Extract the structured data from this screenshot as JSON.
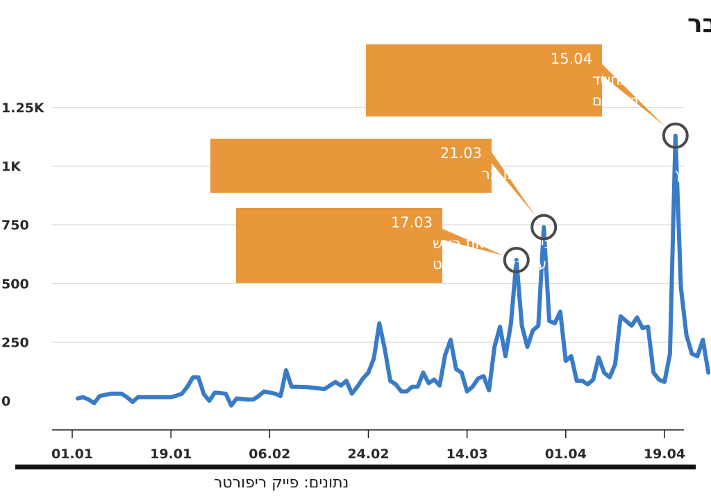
{
  "chart_data": {
    "type": "line",
    "title": "שיח השנאה ברשת נגד ראש השב\"כ רונן בר",
    "source": "נתונים: פייק ריפורטר",
    "colors": {
      "line": "#3a7bc8",
      "callout": "#e8983a",
      "ring": "#4a4a4a"
    },
    "x_ticks": [
      {
        "label": "01.01",
        "day": 1
      },
      {
        "label": "19.01",
        "day": 19
      },
      {
        "label": "06.02",
        "day": 37
      },
      {
        "label": "24.02",
        "day": 55
      },
      {
        "label": "14.03",
        "day": 73
      },
      {
        "label": "01.04",
        "day": 91
      },
      {
        "label": "19.04",
        "day": 109
      }
    ],
    "y_ticks": [
      {
        "label": "0",
        "value": 0
      },
      {
        "label": "250",
        "value": 250
      },
      {
        "label": "500",
        "value": 500
      },
      {
        "label": "750",
        "value": 750
      },
      {
        "label": "1K",
        "value": 1000
      },
      {
        "label": "1.25K",
        "value": 1250
      }
    ],
    "xlim": [
      1,
      113
    ],
    "ylim": [
      0,
      1250
    ],
    "series": [
      {
        "name": "mentions",
        "points": [
          [
            2,
            10
          ],
          [
            3,
            15
          ],
          [
            4,
            5
          ],
          [
            5,
            -10
          ],
          [
            6,
            20
          ],
          [
            8,
            30
          ],
          [
            10,
            30
          ],
          [
            11,
            15
          ],
          [
            12,
            -5
          ],
          [
            13,
            15
          ],
          [
            15,
            15
          ],
          [
            17,
            15
          ],
          [
            19,
            15
          ],
          [
            20,
            22
          ],
          [
            21,
            30
          ],
          [
            22,
            60
          ],
          [
            23,
            100
          ],
          [
            24,
            100
          ],
          [
            25,
            28
          ],
          [
            26,
            0
          ],
          [
            27,
            35
          ],
          [
            29,
            30
          ],
          [
            30,
            -20
          ],
          [
            31,
            10
          ],
          [
            33,
            5
          ],
          [
            34,
            5
          ],
          [
            35,
            20
          ],
          [
            36,
            40
          ],
          [
            38,
            30
          ],
          [
            39,
            20
          ],
          [
            40,
            130
          ],
          [
            41,
            60
          ],
          [
            42,
            60
          ],
          [
            44,
            58
          ],
          [
            47,
            50
          ],
          [
            49,
            80
          ],
          [
            50,
            65
          ],
          [
            51,
            85
          ],
          [
            52,
            30
          ],
          [
            53,
            60
          ],
          [
            54,
            95
          ],
          [
            55,
            120
          ],
          [
            56,
            180
          ],
          [
            57,
            330
          ],
          [
            58,
            220
          ],
          [
            59,
            85
          ],
          [
            60,
            70
          ],
          [
            61,
            40
          ],
          [
            62,
            40
          ],
          [
            63,
            60
          ],
          [
            64,
            60
          ],
          [
            65,
            120
          ],
          [
            66,
            75
          ],
          [
            67,
            90
          ],
          [
            68,
            65
          ],
          [
            69,
            195
          ],
          [
            70,
            260
          ],
          [
            71,
            135
          ],
          [
            72,
            120
          ],
          [
            73,
            40
          ],
          [
            74,
            60
          ],
          [
            75,
            95
          ],
          [
            76,
            105
          ],
          [
            77,
            45
          ],
          [
            78,
            230
          ],
          [
            79,
            315
          ],
          [
            80,
            190
          ],
          [
            81,
            330
          ],
          [
            82,
            600
          ],
          [
            83,
            320
          ],
          [
            84,
            230
          ],
          [
            85,
            300
          ],
          [
            86,
            320
          ],
          [
            87,
            740
          ],
          [
            88,
            340
          ],
          [
            89,
            330
          ],
          [
            90,
            380
          ],
          [
            91,
            170
          ],
          [
            92,
            190
          ],
          [
            93,
            85
          ],
          [
            94,
            85
          ],
          [
            95,
            70
          ],
          [
            96,
            90
          ],
          [
            97,
            185
          ],
          [
            98,
            120
          ],
          [
            99,
            100
          ],
          [
            100,
            155
          ],
          [
            101,
            360
          ],
          [
            102,
            340
          ],
          [
            103,
            320
          ],
          [
            104,
            355
          ],
          [
            105,
            310
          ],
          [
            106,
            315
          ],
          [
            107,
            120
          ],
          [
            108,
            90
          ],
          [
            109,
            80
          ],
          [
            110,
            200
          ],
          [
            111,
            1130
          ],
          [
            112,
            480
          ],
          [
            113,
            280
          ],
          [
            114,
            200
          ],
          [
            115,
            190
          ],
          [
            116,
            260
          ],
          [
            117,
            120
          ]
        ]
      }
    ],
    "annotations": [
      {
        "date": "17.03",
        "lines": [
          "נתניהו תוקף את ראש",
          "השב\"כ על רקע קטארגייט"
        ],
        "x": 82,
        "y": 600
      },
      {
        "date": "21.03",
        "lines": [
          "בג\"ץ מקפיא את ההדחה של רונן בר"
        ],
        "x": 87,
        "y": 740
      },
      {
        "date": "15.04",
        "lines": [
          "מעצרו של איש השב\"כ בחשד",
          "להדלפת מסמכים מסווגים"
        ],
        "x": 111,
        "y": 1130
      }
    ]
  }
}
